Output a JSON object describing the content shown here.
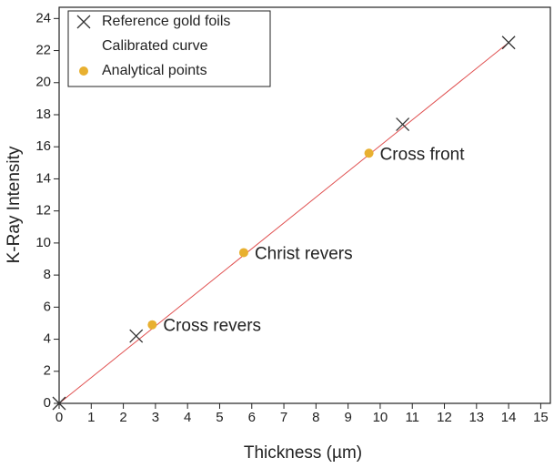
{
  "chart_data": {
    "type": "scatter",
    "x_label": "Thickness (µm)",
    "y_label": "K-Ray Intensity",
    "xlim": [
      0,
      15.3
    ],
    "ylim": [
      0,
      24.7
    ],
    "xticks": [
      0,
      1,
      2,
      3,
      4,
      5,
      6,
      7,
      8,
      9,
      10,
      11,
      12,
      13,
      14,
      15
    ],
    "yticks": [
      0,
      2,
      4,
      6,
      8,
      10,
      12,
      14,
      16,
      18,
      20,
      22,
      24
    ],
    "legend": "upper left",
    "series": [
      {
        "name": "Reference gold foils",
        "marker": "x",
        "color": "#333333",
        "x": [
          0,
          2.4,
          10.7,
          14
        ],
        "values": [
          0,
          4.2,
          17.4,
          22.5
        ]
      },
      {
        "name": "Calibrated curve",
        "marker": "line",
        "color": "#e05050",
        "x": [
          0,
          14
        ],
        "values": [
          0,
          22.5
        ]
      },
      {
        "name": "Analytical points",
        "marker": "circle",
        "color": "#e8b030",
        "x": [
          2.9,
          5.75,
          9.65
        ],
        "values": [
          4.9,
          9.4,
          15.6
        ]
      }
    ],
    "annotations": [
      {
        "text": "Cross revers",
        "x": 2.9,
        "y": 4.9
      },
      {
        "text": "Christ revers",
        "x": 5.75,
        "y": 9.4
      },
      {
        "text": "Cross front",
        "x": 9.65,
        "y": 15.6
      }
    ]
  }
}
